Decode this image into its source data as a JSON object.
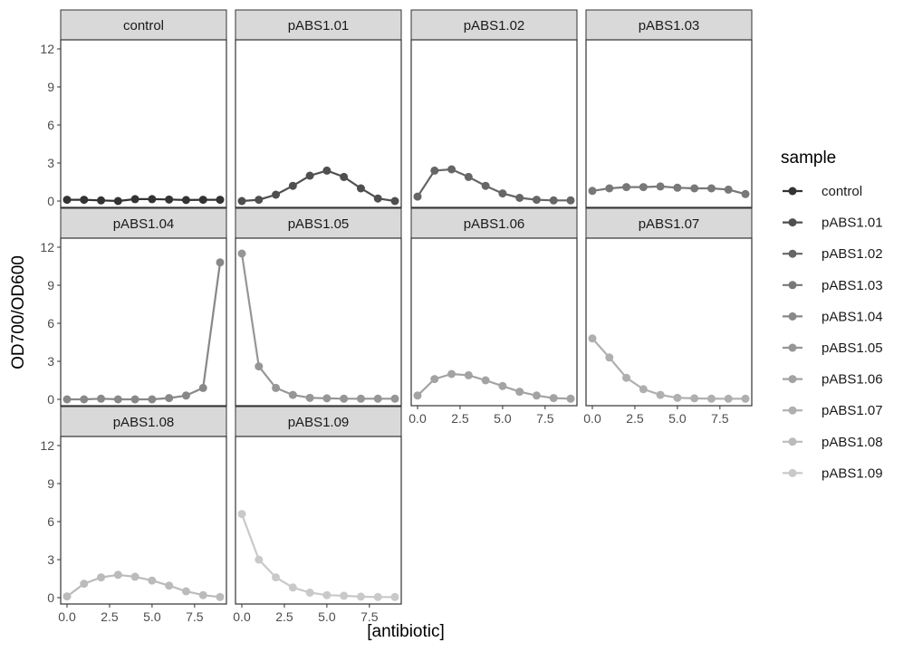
{
  "chart_data": {
    "type": "line",
    "layout": "faceted small multiples (4 columns)",
    "xlabel": "[antibiotic]",
    "ylabel": "OD700/OD600",
    "xlim": [
      0,
      9
    ],
    "ylim": [
      0,
      12
    ],
    "x_ticks": [
      0,
      2.5,
      5,
      7.5
    ],
    "x_tick_labels": [
      "0.0",
      "2.5",
      "5.0",
      "7.5"
    ],
    "y_ticks": [
      0,
      3,
      6,
      9,
      12
    ],
    "y_tick_labels": [
      "0",
      "3",
      "6",
      "9",
      "12"
    ],
    "grid": false,
    "legend": {
      "title": "sample",
      "position": "right"
    },
    "x": [
      0,
      1,
      2,
      3,
      4,
      5,
      6,
      7,
      8,
      9
    ],
    "series": [
      {
        "name": "control",
        "color": "#333333",
        "values": [
          0.1,
          0.1,
          0.05,
          0.0,
          0.15,
          0.15,
          0.12,
          0.08,
          0.1,
          0.1
        ]
      },
      {
        "name": "pABS1.01",
        "color": "#4f4f4f",
        "values": [
          0.0,
          0.1,
          0.5,
          1.2,
          2.0,
          2.4,
          1.9,
          1.0,
          0.2,
          0.0
        ]
      },
      {
        "name": "pABS1.02",
        "color": "#666666",
        "values": [
          0.35,
          2.4,
          2.5,
          1.9,
          1.2,
          0.6,
          0.25,
          0.1,
          0.05,
          0.05
        ]
      },
      {
        "name": "pABS1.03",
        "color": "#787878",
        "values": [
          0.8,
          1.0,
          1.1,
          1.1,
          1.15,
          1.05,
          1.0,
          1.0,
          0.9,
          0.55
        ]
      },
      {
        "name": "pABS1.04",
        "color": "#888888",
        "values": [
          0.0,
          0.0,
          0.05,
          0.0,
          0.0,
          0.0,
          0.1,
          0.3,
          0.9,
          10.8
        ]
      },
      {
        "name": "pABS1.05",
        "color": "#969696",
        "values": [
          11.5,
          2.6,
          0.9,
          0.35,
          0.12,
          0.08,
          0.05,
          0.05,
          0.05,
          0.05
        ]
      },
      {
        "name": "pABS1.06",
        "color": "#a3a3a3",
        "values": [
          0.3,
          1.6,
          2.0,
          1.9,
          1.5,
          1.05,
          0.6,
          0.3,
          0.1,
          0.05
        ]
      },
      {
        "name": "pABS1.07",
        "color": "#afafaf",
        "values": [
          4.8,
          3.3,
          1.7,
          0.8,
          0.35,
          0.12,
          0.08,
          0.05,
          0.05,
          0.05
        ]
      },
      {
        "name": "pABS1.08",
        "color": "#bbbbbb",
        "values": [
          0.1,
          1.1,
          1.6,
          1.8,
          1.65,
          1.35,
          0.95,
          0.5,
          0.2,
          0.05
        ]
      },
      {
        "name": "pABS1.09",
        "color": "#c9c9c9",
        "values": [
          6.6,
          3.0,
          1.6,
          0.8,
          0.4,
          0.2,
          0.15,
          0.08,
          0.05,
          0.05
        ]
      }
    ]
  }
}
